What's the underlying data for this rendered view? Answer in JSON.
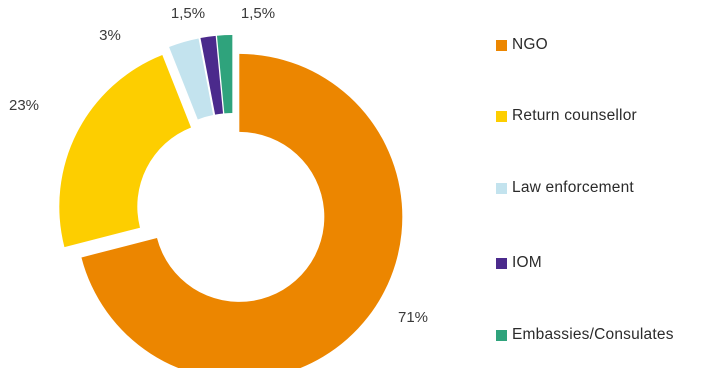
{
  "chart_data": {
    "type": "pie",
    "variant": "donut",
    "title": "",
    "categories": [
      "NGO",
      "Return counsellor",
      "Law enforcement",
      "IOM",
      "Embassies/Consulates"
    ],
    "values": [
      71,
      23,
      3,
      1.5,
      1.5
    ],
    "data_labels": [
      "71%",
      "23%",
      "3%",
      "1,5%",
      "1,5%"
    ],
    "colors": [
      "#ec8600",
      "#fdce00",
      "#c3e3ee",
      "#4b2a8c",
      "#2fa37c"
    ],
    "legend_position": "right",
    "exploded_slices": "all"
  }
}
